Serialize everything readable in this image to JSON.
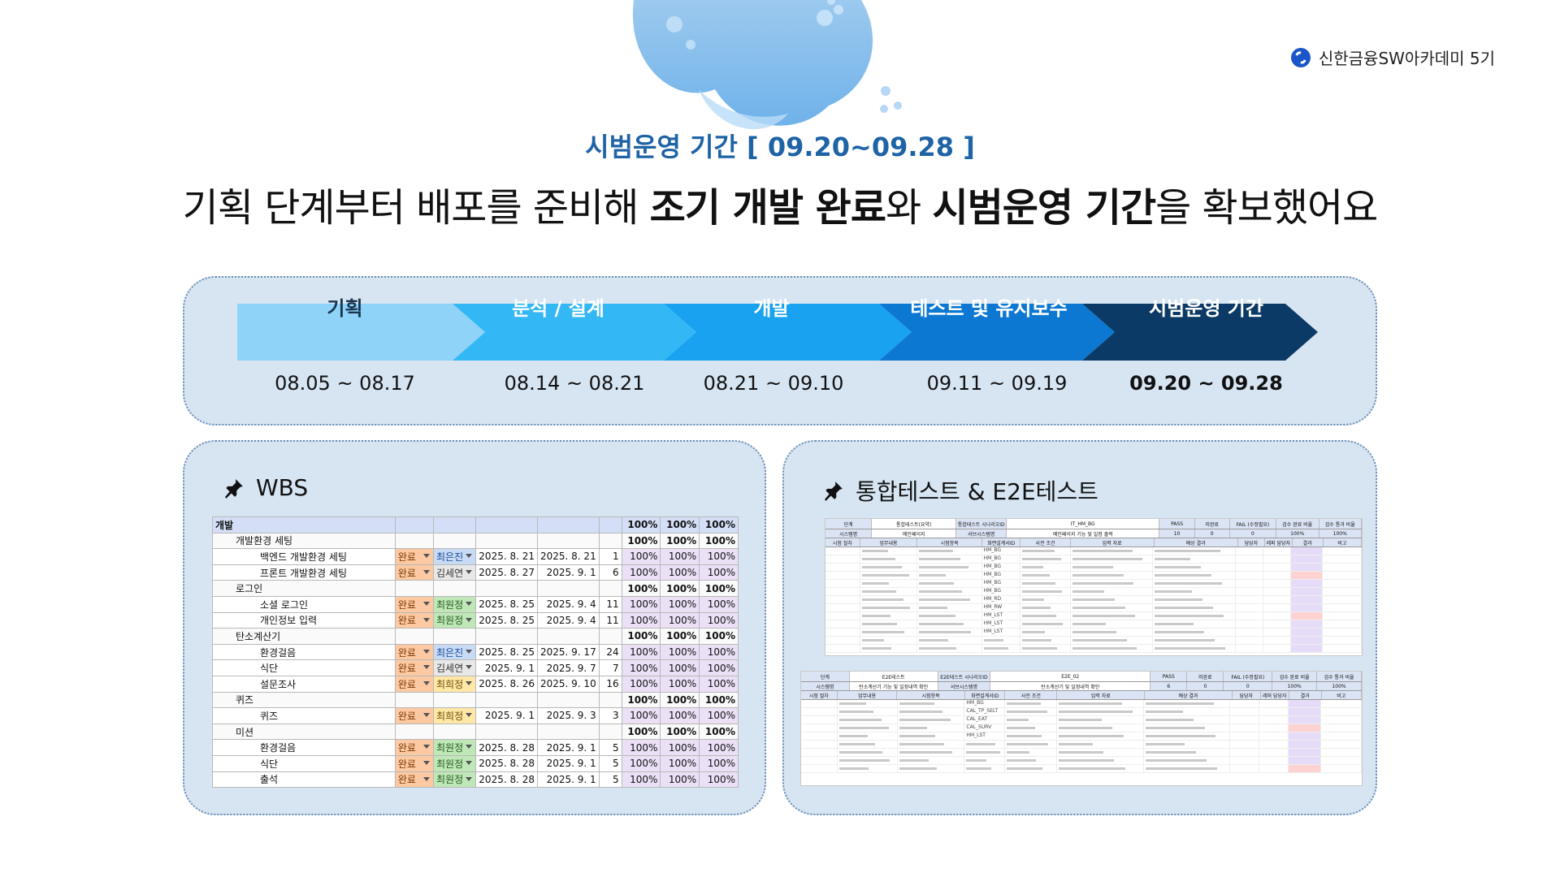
{
  "brand": {
    "name": "신한금융SW아카데미 5기",
    "logo_icon": "shinhan-logo-icon",
    "color": "#1b56c9"
  },
  "header": {
    "subtitle": "시범운영 기간 [ 09.20~09.28 ]",
    "headline": {
      "p1": "기획 단계부터 배포를 준비해 ",
      "b1": "조기 개발 완료",
      "p2": "와 ",
      "b2": "시범운영 기간",
      "p3": "을 확보했어요"
    }
  },
  "timeline": {
    "phases": [
      {
        "label": "기획",
        "dates": "08.05 ~ 08.17",
        "color": "#8fd3f9",
        "text_color": "#1a3550"
      },
      {
        "label": "분석 / 설계",
        "dates": "08.14 ~ 08.21",
        "color": "#34b8f5",
        "text_color": "#ffffff"
      },
      {
        "label": "개발",
        "dates": "08.21 ~ 09.10",
        "color": "#18a2ef",
        "text_color": "#ffffff"
      },
      {
        "label": "테스트 및 유지보수",
        "dates": "09.11 ~ 09.19",
        "color": "#0d78d2",
        "text_color": "#ffffff"
      },
      {
        "label": "시범운영 기간",
        "dates": "09.20 ~ 09.28",
        "color": "#0b3a66",
        "text_color": "#ffffff"
      }
    ]
  },
  "wbs": {
    "title": "WBS",
    "icon": "pin-icon",
    "rows": [
      {
        "level": 1,
        "task": "개발",
        "status": "",
        "assignee": "",
        "start": "",
        "end": "",
        "days": "",
        "p1": "100%",
        "p2": "100%",
        "p3": "100%"
      },
      {
        "level": 2,
        "task": "개발환경 세팅",
        "status": "",
        "assignee": "",
        "start": "",
        "end": "",
        "days": "",
        "p1": "100%",
        "p2": "100%",
        "p3": "100%"
      },
      {
        "level": 3,
        "task": "백엔드 개발환경 세팅",
        "status": "완료",
        "assignee": "최은진",
        "a": "a1",
        "start": "2025. 8. 21",
        "end": "2025. 8. 21",
        "days": "1",
        "p1": "100%",
        "p2": "100%",
        "p3": "100%"
      },
      {
        "level": 3,
        "task": "프론트 개발환경 세팅",
        "status": "완료",
        "assignee": "김세연",
        "a": "a2",
        "start": "2025. 8. 27",
        "end": "2025. 9. 1",
        "days": "6",
        "p1": "100%",
        "p2": "100%",
        "p3": "100%"
      },
      {
        "level": 2,
        "task": "로그인",
        "status": "",
        "assignee": "",
        "start": "",
        "end": "",
        "days": "",
        "p1": "100%",
        "p2": "100%",
        "p3": "100%"
      },
      {
        "level": 3,
        "task": "소셜 로그인",
        "status": "완료",
        "assignee": "최원정",
        "a": "a3",
        "start": "2025. 8. 25",
        "end": "2025. 9. 4",
        "days": "11",
        "p1": "100%",
        "p2": "100%",
        "p3": "100%"
      },
      {
        "level": 3,
        "task": "개인정보 입력",
        "status": "완료",
        "assignee": "최원정",
        "a": "a3",
        "start": "2025. 8. 25",
        "end": "2025. 9. 4",
        "days": "11",
        "p1": "100%",
        "p2": "100%",
        "p3": "100%"
      },
      {
        "level": 2,
        "task": "탄소계산기",
        "status": "",
        "assignee": "",
        "start": "",
        "end": "",
        "days": "",
        "p1": "100%",
        "p2": "100%",
        "p3": "100%"
      },
      {
        "level": 3,
        "task": "환경걸음",
        "status": "완료",
        "assignee": "최은진",
        "a": "a1",
        "start": "2025. 8. 25",
        "end": "2025. 9. 17",
        "days": "24",
        "p1": "100%",
        "p2": "100%",
        "p3": "100%"
      },
      {
        "level": 3,
        "task": "식단",
        "status": "완료",
        "assignee": "김세연",
        "a": "a2",
        "start": "2025. 9. 1",
        "end": "2025. 9. 7",
        "days": "7",
        "p1": "100%",
        "p2": "100%",
        "p3": "100%"
      },
      {
        "level": 3,
        "task": "설문조사",
        "status": "완료",
        "assignee": "최희정",
        "a": "a4",
        "start": "2025. 8. 26",
        "end": "2025. 9. 10",
        "days": "16",
        "p1": "100%",
        "p2": "100%",
        "p3": "100%"
      },
      {
        "level": 2,
        "task": "퀴즈",
        "status": "",
        "assignee": "",
        "start": "",
        "end": "",
        "days": "",
        "p1": "100%",
        "p2": "100%",
        "p3": "100%"
      },
      {
        "level": 3,
        "task": "퀴즈",
        "status": "완료",
        "assignee": "최희정",
        "a": "a4",
        "start": "2025. 9. 1",
        "end": "2025. 9. 3",
        "days": "3",
        "p1": "100%",
        "p2": "100%",
        "p3": "100%"
      },
      {
        "level": 2,
        "task": "미션",
        "status": "",
        "assignee": "",
        "start": "",
        "end": "",
        "days": "",
        "p1": "100%",
        "p2": "100%",
        "p3": "100%"
      },
      {
        "level": 3,
        "task": "환경걸음",
        "status": "완료",
        "assignee": "최원정",
        "a": "a3",
        "start": "2025. 8. 28",
        "end": "2025. 9. 1",
        "days": "5",
        "p1": "100%",
        "p2": "100%",
        "p3": "100%"
      },
      {
        "level": 3,
        "task": "식단",
        "status": "완료",
        "assignee": "최원정",
        "a": "a3",
        "start": "2025. 8. 28",
        "end": "2025. 9. 1",
        "days": "5",
        "p1": "100%",
        "p2": "100%",
        "p3": "100%"
      },
      {
        "level": 3,
        "task": "출석",
        "status": "완료",
        "assignee": "최원정",
        "a": "a3",
        "start": "2025. 8. 28",
        "end": "2025. 9. 1",
        "days": "5",
        "p1": "100%",
        "p2": "100%",
        "p3": "100%"
      }
    ]
  },
  "tests": {
    "title": "통합테스트 & E2E테스트",
    "icon": "pin-icon",
    "integration": {
      "row1": [
        "단계",
        "통합테스트(요약)",
        "통합테스트 시나리오ID",
        "IT_HM_BG",
        "PASS",
        "미완료",
        "FAIL (수정필요)",
        "검수 완료 비율",
        "검수 통과 비율"
      ],
      "row2": [
        "시스템명",
        "메인페이지",
        "서브시스템명",
        "메인페이지 기능 및 일정 출력",
        "10",
        "0",
        "0",
        "100%",
        "100%"
      ],
      "columns": [
        "시험 절차",
        "업무내용",
        "시험항목",
        "화면설계서ID",
        "사전 조건",
        "입력 자료",
        "예상 결과",
        "담당자",
        "레퍼 담당자",
        "결과",
        "비고"
      ],
      "codes": [
        "HM_BG",
        "HM_BG",
        "HM_BG",
        "HM_BG",
        "HM_BG",
        "HM_BG",
        "HM_RD",
        "HM_RW",
        "HM_LST",
        "HM_LST",
        "HM_LST"
      ]
    },
    "e2e": {
      "row1": [
        "단계",
        "E2E테스트",
        "E2E테스트 시나리오ID",
        "E2E_02",
        "PASS",
        "미완료",
        "FAIL (수정필요)",
        "검수 완료 비율",
        "검수 통과 비율"
      ],
      "row2": [
        "시스템명",
        "탄소계산기 기능 및 일정내역 확인",
        "서브시스템명",
        "탄소계산기 및 일정내역 확인",
        "6",
        "0",
        "0",
        "100%",
        "100%"
      ],
      "columns": [
        "시험 절차",
        "업무내용",
        "시험항목",
        "화면설계서ID",
        "사전 조건",
        "입력 자료",
        "예상 결과",
        "담당자",
        "레퍼 담당자",
        "결과",
        "비고"
      ],
      "codes": [
        "HM_BG",
        "CAL_TP_SELT",
        "CAL_EAT",
        "CAL_SURV",
        "HM_LST"
      ]
    }
  }
}
